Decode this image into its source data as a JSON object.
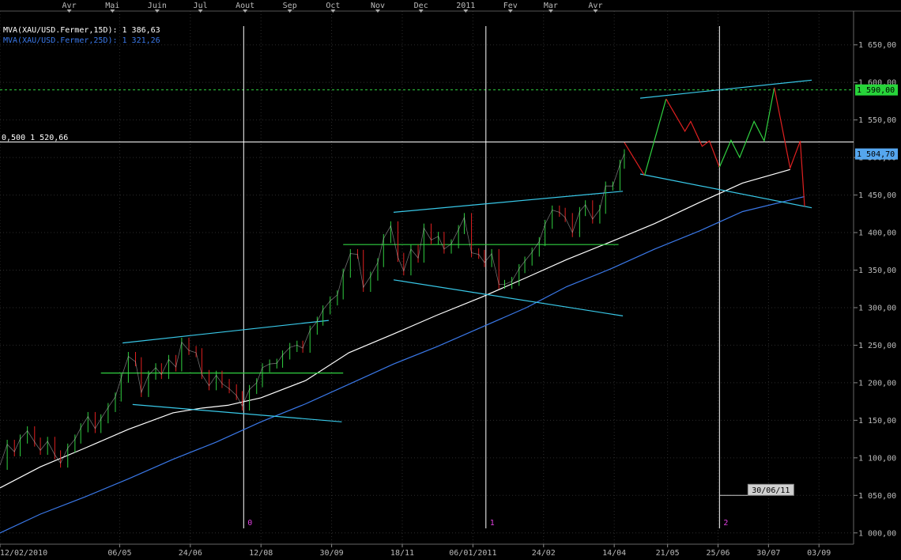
{
  "chart_data": {
    "type": "line",
    "top_axis": {
      "labels": [
        "Avr",
        "Mai",
        "Juin",
        "Jul",
        "Aout",
        "Sep",
        "Oct",
        "Nov",
        "Dec",
        "2011",
        "Fev",
        "Mar",
        "Avr"
      ],
      "dates": [
        "2010-04-01",
        "2010-05-01",
        "2010-06-01",
        "2010-07-01",
        "2010-08-01",
        "2010-09-01",
        "2010-10-01",
        "2010-11-01",
        "2010-12-01",
        "2011-01-01",
        "2011-02-01",
        "2011-03-01",
        "2011-04-01"
      ]
    },
    "x_ticks": [
      {
        "label": "12/02/2010",
        "date": "2010-02-12"
      },
      {
        "label": "06/05",
        "date": "2010-05-06"
      },
      {
        "label": "24/06",
        "date": "2010-06-24"
      },
      {
        "label": "12/08",
        "date": "2010-08-12"
      },
      {
        "label": "30/09",
        "date": "2010-09-30"
      },
      {
        "label": "18/11",
        "date": "2010-11-18"
      },
      {
        "label": "06/01/2011",
        "date": "2011-01-06"
      },
      {
        "label": "24/02",
        "date": "2011-02-24"
      },
      {
        "label": "14/04",
        "date": "2011-04-14"
      },
      {
        "label": "21/05",
        "date": "2011-05-21"
      },
      {
        "label": "25/06",
        "date": "2011-06-25"
      },
      {
        "label": "30/07",
        "date": "2011-07-30"
      },
      {
        "label": "03/09",
        "date": "2011-09-03"
      }
    ],
    "y_ticks": [
      {
        "value": 1000,
        "label": "1 000,00"
      },
      {
        "value": 1050,
        "label": "1 050,00"
      },
      {
        "value": 1100,
        "label": "1 100,00"
      },
      {
        "value": 1150,
        "label": "1 150,00"
      },
      {
        "value": 1200,
        "label": "1 200,00"
      },
      {
        "value": 1250,
        "label": "1 250,00"
      },
      {
        "value": 1300,
        "label": "1 300,00"
      },
      {
        "value": 1350,
        "label": "1 350,00"
      },
      {
        "value": 1400,
        "label": "1 400,00"
      },
      {
        "value": 1450,
        "label": "1 450,00"
      },
      {
        "value": 1500,
        "label": "1 500,00"
      },
      {
        "value": 1550,
        "label": "1 550,00"
      },
      {
        "value": 1600,
        "label": "1 600,00"
      },
      {
        "value": 1650,
        "label": "1 650,00"
      }
    ],
    "ylim": [
      985,
      1695
    ],
    "xlim": [
      "2010-02-12",
      "2011-09-27"
    ],
    "legend": [
      {
        "text": "MVA(XAU/USD.Fermer,15D): 1 386,63",
        "color": "#ffffff"
      },
      {
        "text": "MVA(XAU/USD.Fermer,25D): 1 321,26",
        "color": "#3a78e8"
      }
    ],
    "value_badges": [
      {
        "value": 1590,
        "label": "1 590,00",
        "color": "#27d43a"
      },
      {
        "value": 1504.7,
        "label": "1 504,70",
        "color": "#55a6ee"
      }
    ],
    "horizontal_line": {
      "value": 1520.66,
      "label": "0,500 1 520,66"
    },
    "dashed_line": {
      "value": 1590
    },
    "vertical_markers": [
      {
        "date": "2010-07-31",
        "label": "0"
      },
      {
        "date": "2011-01-15",
        "label": "1"
      },
      {
        "date": "2011-06-26",
        "label": "2"
      }
    ],
    "date_tooltip": {
      "label": "30/06/11",
      "date": "2011-06-26",
      "value": 1050
    },
    "price": [
      [
        "2010-02-12",
        1090
      ],
      [
        "2010-02-17",
        1118
      ],
      [
        "2010-02-22",
        1108
      ],
      [
        "2010-02-26",
        1125
      ],
      [
        "2010-03-03",
        1136
      ],
      [
        "2010-03-08",
        1121
      ],
      [
        "2010-03-12",
        1110
      ],
      [
        "2010-03-17",
        1122
      ],
      [
        "2010-03-22",
        1104
      ],
      [
        "2010-03-26",
        1093
      ],
      [
        "2010-03-31",
        1113
      ],
      [
        "2010-04-05",
        1125
      ],
      [
        "2010-04-09",
        1140
      ],
      [
        "2010-04-14",
        1155
      ],
      [
        "2010-04-19",
        1139
      ],
      [
        "2010-04-23",
        1152
      ],
      [
        "2010-04-28",
        1167
      ],
      [
        "2010-05-03",
        1181
      ],
      [
        "2010-05-07",
        1206
      ],
      [
        "2010-05-12",
        1235
      ],
      [
        "2010-05-17",
        1228
      ],
      [
        "2010-05-21",
        1187
      ],
      [
        "2010-05-26",
        1210
      ],
      [
        "2010-05-31",
        1220
      ],
      [
        "2010-06-04",
        1211
      ],
      [
        "2010-06-09",
        1231
      ],
      [
        "2010-06-14",
        1221
      ],
      [
        "2010-06-18",
        1254
      ],
      [
        "2010-06-23",
        1243
      ],
      [
        "2010-06-28",
        1240
      ],
      [
        "2010-07-02",
        1211
      ],
      [
        "2010-07-07",
        1196
      ],
      [
        "2010-07-12",
        1210
      ],
      [
        "2010-07-16",
        1199
      ],
      [
        "2010-07-21",
        1192
      ],
      [
        "2010-07-26",
        1183
      ],
      [
        "2010-07-30",
        1169
      ],
      [
        "2010-08-04",
        1191
      ],
      [
        "2010-08-09",
        1200
      ],
      [
        "2010-08-13",
        1220
      ],
      [
        "2010-08-18",
        1225
      ],
      [
        "2010-08-23",
        1226
      ],
      [
        "2010-08-27",
        1237
      ],
      [
        "2010-09-01",
        1247
      ],
      [
        "2010-09-06",
        1250
      ],
      [
        "2010-09-10",
        1246
      ],
      [
        "2010-09-15",
        1270
      ],
      [
        "2010-09-20",
        1282
      ],
      [
        "2010-09-24",
        1297
      ],
      [
        "2010-09-29",
        1309
      ],
      [
        "2010-10-04",
        1317
      ],
      [
        "2010-10-08",
        1346
      ],
      [
        "2010-10-13",
        1372
      ],
      [
        "2010-10-18",
        1371
      ],
      [
        "2010-10-22",
        1327
      ],
      [
        "2010-10-27",
        1342
      ],
      [
        "2010-11-01",
        1360
      ],
      [
        "2010-11-05",
        1392
      ],
      [
        "2010-11-10",
        1409
      ],
      [
        "2010-11-15",
        1367
      ],
      [
        "2010-11-19",
        1349
      ],
      [
        "2010-11-24",
        1378
      ],
      [
        "2010-11-29",
        1366
      ],
      [
        "2010-12-03",
        1406
      ],
      [
        "2010-12-08",
        1390
      ],
      [
        "2010-12-13",
        1395
      ],
      [
        "2010-12-17",
        1378
      ],
      [
        "2010-12-22",
        1385
      ],
      [
        "2010-12-27",
        1404
      ],
      [
        "2010-12-31",
        1420
      ],
      [
        "2011-01-05",
        1373
      ],
      [
        "2011-01-10",
        1371
      ],
      [
        "2011-01-14",
        1360
      ],
      [
        "2011-01-19",
        1372
      ],
      [
        "2011-01-24",
        1331
      ],
      [
        "2011-01-28",
        1331
      ],
      [
        "2011-02-02",
        1335
      ],
      [
        "2011-02-07",
        1352
      ],
      [
        "2011-02-11",
        1362
      ],
      [
        "2011-02-16",
        1374
      ],
      [
        "2011-02-21",
        1388
      ],
      [
        "2011-02-25",
        1411
      ],
      [
        "2011-03-02",
        1430
      ],
      [
        "2011-03-07",
        1427
      ],
      [
        "2011-03-11",
        1420
      ],
      [
        "2011-03-16",
        1400
      ],
      [
        "2011-03-21",
        1428
      ],
      [
        "2011-03-25",
        1437
      ],
      [
        "2011-03-30",
        1418
      ],
      [
        "2011-04-04",
        1431
      ],
      [
        "2011-04-08",
        1462
      ],
      [
        "2011-04-13",
        1462
      ],
      [
        "2011-04-18",
        1491
      ],
      [
        "2011-04-21",
        1505
      ]
    ],
    "projection": [
      {
        "color": "#e02020",
        "points": [
          [
            "2011-04-21",
            1520
          ],
          [
            "2011-05-05",
            1476
          ]
        ]
      },
      {
        "color": "#30d040",
        "points": [
          [
            "2011-05-05",
            1476
          ],
          [
            "2011-05-20",
            1578
          ]
        ]
      },
      {
        "color": "#e02020",
        "points": [
          [
            "2011-05-20",
            1578
          ],
          [
            "2011-06-02",
            1535
          ],
          [
            "2011-06-06",
            1548
          ],
          [
            "2011-06-14",
            1515
          ],
          [
            "2011-06-19",
            1522
          ],
          [
            "2011-06-26",
            1487
          ]
        ]
      },
      {
        "color": "#30d040",
        "points": [
          [
            "2011-06-26",
            1487
          ],
          [
            "2011-07-04",
            1523
          ],
          [
            "2011-07-10",
            1500
          ],
          [
            "2011-07-20",
            1548
          ],
          [
            "2011-07-27",
            1522
          ],
          [
            "2011-08-03",
            1593
          ]
        ]
      },
      {
        "color": "#e02020",
        "points": [
          [
            "2011-08-03",
            1593
          ],
          [
            "2011-08-14",
            1486
          ],
          [
            "2011-08-21",
            1522
          ],
          [
            "2011-08-24",
            1435
          ]
        ]
      }
    ],
    "ma15": [
      [
        "2010-02-12",
        1060
      ],
      [
        "2010-03-12",
        1088
      ],
      [
        "2010-04-12",
        1113
      ],
      [
        "2010-05-12",
        1138
      ],
      [
        "2010-06-12",
        1160
      ],
      [
        "2010-07-01",
        1166
      ],
      [
        "2010-07-20",
        1170
      ],
      [
        "2010-08-12",
        1180
      ],
      [
        "2010-09-12",
        1203
      ],
      [
        "2010-10-12",
        1240
      ],
      [
        "2010-11-12",
        1265
      ],
      [
        "2010-12-12",
        1290
      ],
      [
        "2011-01-12",
        1314
      ],
      [
        "2011-02-12",
        1340
      ],
      [
        "2011-03-12",
        1364
      ],
      [
        "2011-04-12",
        1388
      ],
      [
        "2011-05-12",
        1412
      ],
      [
        "2011-06-12",
        1440
      ],
      [
        "2011-07-12",
        1466
      ],
      [
        "2011-08-14",
        1484
      ]
    ],
    "ma25": [
      [
        "2010-02-12",
        1000
      ],
      [
        "2010-03-12",
        1025
      ],
      [
        "2010-04-12",
        1048
      ],
      [
        "2010-05-12",
        1072
      ],
      [
        "2010-06-12",
        1098
      ],
      [
        "2010-07-12",
        1121
      ],
      [
        "2010-08-12",
        1148
      ],
      [
        "2010-09-12",
        1172
      ],
      [
        "2010-10-12",
        1198
      ],
      [
        "2010-11-12",
        1225
      ],
      [
        "2010-12-12",
        1248
      ],
      [
        "2011-01-12",
        1274
      ],
      [
        "2011-02-12",
        1300
      ],
      [
        "2011-03-12",
        1328
      ],
      [
        "2011-04-12",
        1352
      ],
      [
        "2011-05-12",
        1378
      ],
      [
        "2011-06-12",
        1402
      ],
      [
        "2011-07-12",
        1428
      ],
      [
        "2011-08-24",
        1448
      ]
    ],
    "trend_lines": [
      {
        "color": "#38c8e8",
        "points": [
          [
            "2010-05-08",
            1253
          ],
          [
            "2010-09-28",
            1283
          ]
        ]
      },
      {
        "color": "#30d040",
        "points": [
          [
            "2010-04-23",
            1213
          ],
          [
            "2010-10-08",
            1213
          ]
        ]
      },
      {
        "color": "#38c8e8",
        "points": [
          [
            "2010-05-15",
            1171
          ],
          [
            "2010-10-07",
            1148
          ]
        ]
      },
      {
        "color": "#38c8e8",
        "points": [
          [
            "2010-11-12",
            1427
          ],
          [
            "2011-04-20",
            1455
          ]
        ]
      },
      {
        "color": "#30d040",
        "points": [
          [
            "2010-10-08",
            1384
          ],
          [
            "2011-04-17",
            1384
          ]
        ]
      },
      {
        "color": "#38c8e8",
        "points": [
          [
            "2010-11-12",
            1337
          ],
          [
            "2011-04-20",
            1289
          ]
        ]
      },
      {
        "color": "#38c8e8",
        "points": [
          [
            "2011-05-02",
            1579
          ],
          [
            "2011-08-29",
            1603
          ]
        ]
      },
      {
        "color": "#38c8e8",
        "points": [
          [
            "2011-05-02",
            1478
          ],
          [
            "2011-08-29",
            1433
          ]
        ]
      }
    ]
  }
}
